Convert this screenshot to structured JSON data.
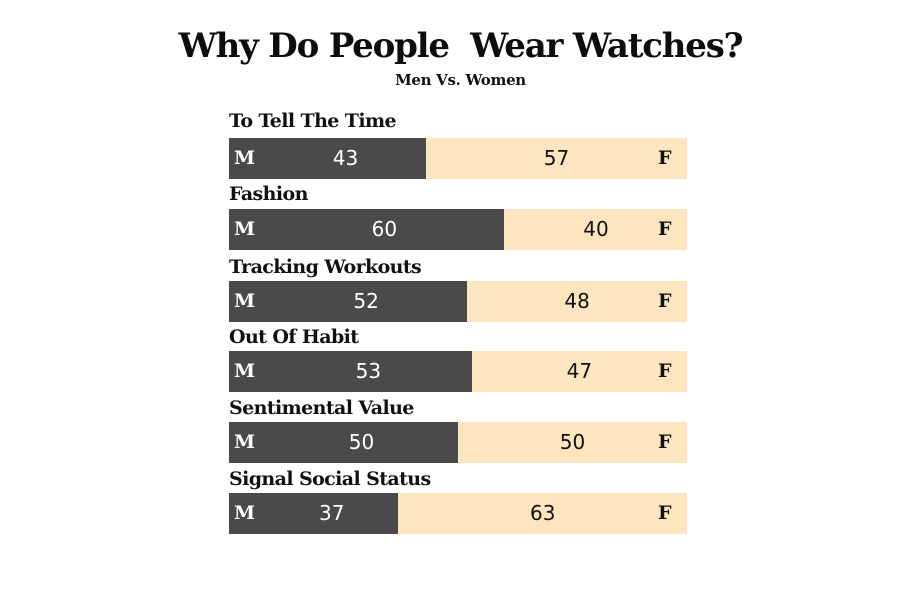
{
  "title": "Why Do People  Wear Watches?",
  "subtitle": "Men Vs. Women",
  "colors": {
    "men": "#4a4a4a",
    "women": "#fde5c0"
  },
  "chart_data": {
    "type": "bar",
    "orientation": "horizontal-stacked-100",
    "title": "Why Do People  Wear Watches?",
    "subtitle": "Men Vs. Women",
    "segment_labels": {
      "men": "M",
      "women": "F"
    },
    "categories": [
      "To Tell The Time",
      "Fashion",
      "Tracking Workouts",
      "Out Of Habit",
      "Sentimental Value",
      "Signal Social Status"
    ],
    "series": [
      {
        "name": "M",
        "values": [
          43,
          60,
          52,
          53,
          50,
          37
        ]
      },
      {
        "name": "F",
        "values": [
          57,
          40,
          48,
          47,
          50,
          63
        ]
      }
    ],
    "xlim": [
      0,
      100
    ],
    "grid": false
  }
}
